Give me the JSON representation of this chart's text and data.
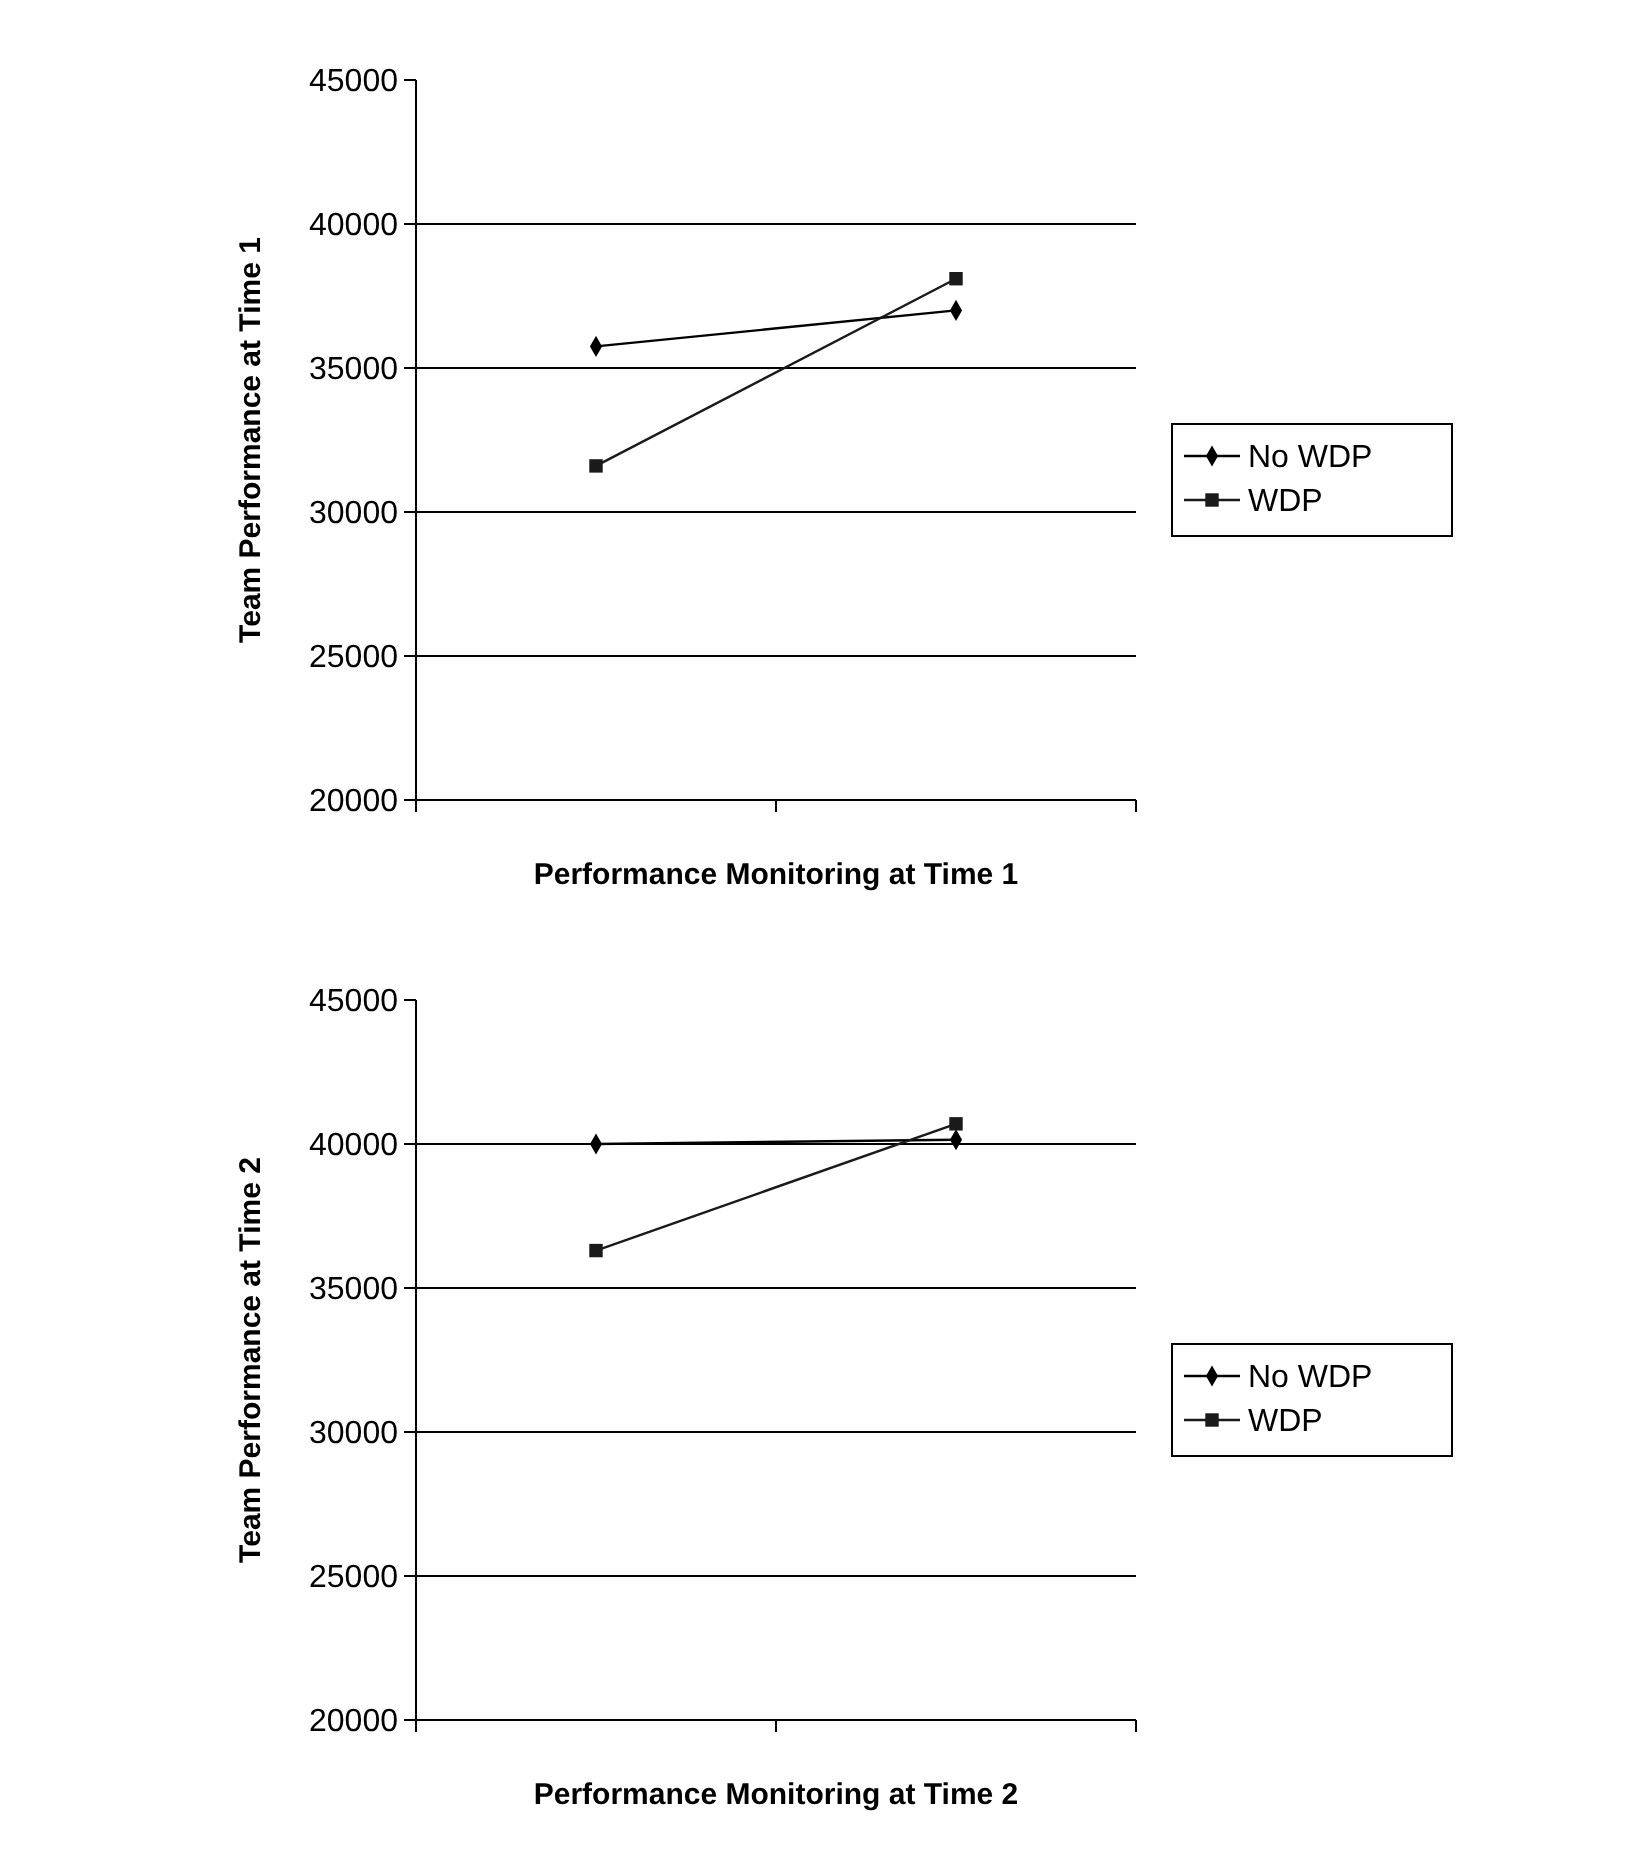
{
  "chart_data": [
    {
      "type": "line",
      "xlabel": "Performance Monitoring at Time 1",
      "ylabel": "Team Performance at Time 1",
      "categories": [
        null,
        null
      ],
      "ylim": [
        20000,
        45000
      ],
      "yticks": [
        20000,
        25000,
        30000,
        35000,
        40000,
        45000
      ],
      "grid": "y",
      "legend": "right",
      "tick_labels": "y",
      "series": [
        {
          "name": "No WDP",
          "color": "#000000",
          "marker": "diamond",
          "values": [
            35750,
            37000
          ]
        },
        {
          "name": "WDP",
          "color": "#1a1a1a",
          "marker": "square",
          "values": [
            31600,
            38100
          ]
        }
      ]
    },
    {
      "type": "line",
      "xlabel": "Performance Monitoring at Time 2",
      "ylabel": "Team Performance at Time 2",
      "categories": [
        null,
        null
      ],
      "ylim": [
        20000,
        45000
      ],
      "yticks": [
        20000,
        25000,
        30000,
        35000,
        40000,
        45000
      ],
      "grid": "y",
      "legend": "right",
      "tick_labels": "y",
      "series": [
        {
          "name": "No WDP",
          "color": "#000000",
          "marker": "diamond",
          "values": [
            40000,
            40150
          ]
        },
        {
          "name": "WDP",
          "color": "#1a1a1a",
          "marker": "square",
          "values": [
            36300,
            40700
          ]
        }
      ]
    }
  ]
}
